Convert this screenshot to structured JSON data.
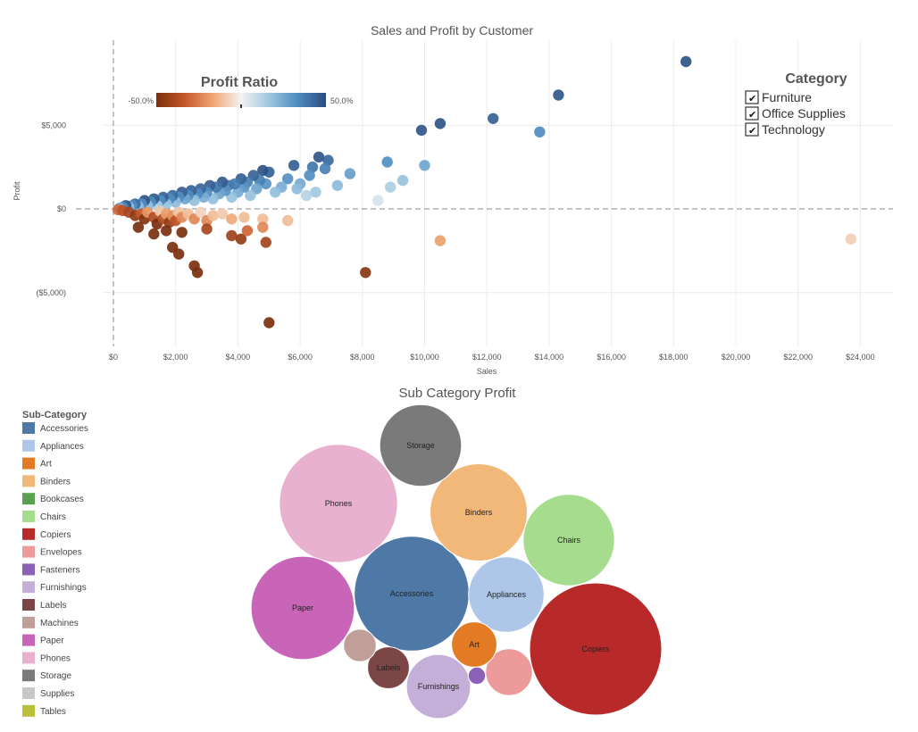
{
  "colors": {
    "gradient": [
      "#7b2f0e",
      "#c4562a",
      "#f0a673",
      "#f3f3f3",
      "#9dc7e0",
      "#4d8bc0",
      "#2b4c7e"
    ]
  },
  "scatter": {
    "title": "Sales and Profit by Customer",
    "xlabel": "Sales",
    "ylabel": "Profit",
    "x_ticks": [
      "$0",
      "$2,000",
      "$4,000",
      "$6,000",
      "$8,000",
      "$10,000",
      "$12,000",
      "$14,000",
      "$16,000",
      "$18,000",
      "$20,000",
      "$22,000",
      "$24,000"
    ],
    "y_ticks": [
      "$5,000",
      "$0",
      "($5,000)"
    ],
    "color_legend": {
      "title": "Profit Ratio",
      "min_label": "-50.0%",
      "max_label": "50.0%"
    },
    "category_legend": {
      "title": "Category",
      "items": [
        {
          "label": "Furniture",
          "checked": true
        },
        {
          "label": "Office Supplies",
          "checked": true
        },
        {
          "label": "Technology",
          "checked": true
        }
      ]
    }
  },
  "bubbles": {
    "title": "Sub Category Profit",
    "legend_title": "Sub-Category"
  },
  "chart_data": [
    {
      "type": "scatter",
      "title": "Sales and Profit by Customer",
      "xlabel": "Sales",
      "ylabel": "Profit",
      "xlim": [
        0,
        25000
      ],
      "ylim": [
        -7000,
        9500
      ],
      "color_encoding": "Profit Ratio",
      "color_range": [
        -0.5,
        0.5
      ],
      "grid": true,
      "points": [
        {
          "x": 18400,
          "y": 8800,
          "r": 0.48
        },
        {
          "x": 14300,
          "y": 6800,
          "r": 0.47
        },
        {
          "x": 12200,
          "y": 5400,
          "r": 0.44
        },
        {
          "x": 10500,
          "y": 5100,
          "r": 0.48
        },
        {
          "x": 9900,
          "y": 4700,
          "r": 0.47
        },
        {
          "x": 13700,
          "y": 4600,
          "r": 0.33
        },
        {
          "x": 23700,
          "y": -1800,
          "r": -0.08
        },
        {
          "x": 10500,
          "y": -1900,
          "r": -0.18
        },
        {
          "x": 8100,
          "y": -3800,
          "r": -0.47
        },
        {
          "x": 5000,
          "y": -6800,
          "r": -0.5
        },
        {
          "x": 8800,
          "y": 2800,
          "r": 0.32
        },
        {
          "x": 10000,
          "y": 2600,
          "r": 0.26
        },
        {
          "x": 9300,
          "y": 1700,
          "r": 0.18
        },
        {
          "x": 8900,
          "y": 1300,
          "r": 0.14
        },
        {
          "x": 8500,
          "y": 500,
          "r": 0.06
        },
        {
          "x": 7600,
          "y": 2100,
          "r": 0.28
        },
        {
          "x": 7200,
          "y": 1400,
          "r": 0.2
        },
        {
          "x": 6900,
          "y": 2900,
          "r": 0.42
        },
        {
          "x": 6800,
          "y": 2400,
          "r": 0.36
        },
        {
          "x": 6600,
          "y": 3100,
          "r": 0.47
        },
        {
          "x": 6400,
          "y": 2500,
          "r": 0.39
        },
        {
          "x": 6300,
          "y": 2000,
          "r": 0.32
        },
        {
          "x": 6500,
          "y": 1000,
          "r": 0.16
        },
        {
          "x": 6200,
          "y": 800,
          "r": 0.12
        },
        {
          "x": 6000,
          "y": 1500,
          "r": 0.25
        },
        {
          "x": 5900,
          "y": 1200,
          "r": 0.2
        },
        {
          "x": 5800,
          "y": 2600,
          "r": 0.45
        },
        {
          "x": 5600,
          "y": 1800,
          "r": 0.32
        },
        {
          "x": 5400,
          "y": 1300,
          "r": 0.24
        },
        {
          "x": 5200,
          "y": 1000,
          "r": 0.19
        },
        {
          "x": 5000,
          "y": 2200,
          "r": 0.44
        },
        {
          "x": 4900,
          "y": 1500,
          "r": 0.31
        },
        {
          "x": 4800,
          "y": 2300,
          "r": 0.48
        },
        {
          "x": 4700,
          "y": 1700,
          "r": 0.36
        },
        {
          "x": 4600,
          "y": 1200,
          "r": 0.26
        },
        {
          "x": 4500,
          "y": 2000,
          "r": 0.44
        },
        {
          "x": 4400,
          "y": 800,
          "r": 0.18
        },
        {
          "x": 4300,
          "y": 1600,
          "r": 0.37
        },
        {
          "x": 4200,
          "y": 1300,
          "r": 0.31
        },
        {
          "x": 4100,
          "y": 1800,
          "r": 0.44
        },
        {
          "x": 4000,
          "y": 1000,
          "r": 0.25
        },
        {
          "x": 3900,
          "y": 1500,
          "r": 0.38
        },
        {
          "x": 3800,
          "y": 700,
          "r": 0.18
        },
        {
          "x": 3700,
          "y": 1400,
          "r": 0.38
        },
        {
          "x": 3600,
          "y": 1100,
          "r": 0.31
        },
        {
          "x": 3500,
          "y": 1600,
          "r": 0.46
        },
        {
          "x": 3400,
          "y": 900,
          "r": 0.26
        },
        {
          "x": 3300,
          "y": 1300,
          "r": 0.39
        },
        {
          "x": 3200,
          "y": 600,
          "r": 0.19
        },
        {
          "x": 3100,
          "y": 1400,
          "r": 0.45
        },
        {
          "x": 3000,
          "y": 1000,
          "r": 0.33
        },
        {
          "x": 2900,
          "y": 700,
          "r": 0.24
        },
        {
          "x": 2800,
          "y": 1200,
          "r": 0.43
        },
        {
          "x": 2700,
          "y": 900,
          "r": 0.33
        },
        {
          "x": 2600,
          "y": 500,
          "r": 0.19
        },
        {
          "x": 2500,
          "y": 1100,
          "r": 0.44
        },
        {
          "x": 2400,
          "y": 800,
          "r": 0.33
        },
        {
          "x": 2300,
          "y": 600,
          "r": 0.26
        },
        {
          "x": 2200,
          "y": 1000,
          "r": 0.45
        },
        {
          "x": 2100,
          "y": 700,
          "r": 0.33
        },
        {
          "x": 2000,
          "y": 400,
          "r": 0.2
        },
        {
          "x": 1900,
          "y": 800,
          "r": 0.42
        },
        {
          "x": 1800,
          "y": 600,
          "r": 0.33
        },
        {
          "x": 1700,
          "y": 300,
          "r": 0.18
        },
        {
          "x": 1600,
          "y": 700,
          "r": 0.44
        },
        {
          "x": 1500,
          "y": 500,
          "r": 0.33
        },
        {
          "x": 1400,
          "y": 200,
          "r": 0.14
        },
        {
          "x": 1300,
          "y": 600,
          "r": 0.46
        },
        {
          "x": 1200,
          "y": 400,
          "r": 0.33
        },
        {
          "x": 1100,
          "y": 200,
          "r": 0.18
        },
        {
          "x": 1000,
          "y": 500,
          "r": 0.48
        },
        {
          "x": 900,
          "y": 300,
          "r": 0.33
        },
        {
          "x": 800,
          "y": 150,
          "r": 0.19
        },
        {
          "x": 700,
          "y": 300,
          "r": 0.42
        },
        {
          "x": 600,
          "y": 200,
          "r": 0.33
        },
        {
          "x": 500,
          "y": 100,
          "r": 0.2
        },
        {
          "x": 400,
          "y": 200,
          "r": 0.48
        },
        {
          "x": 300,
          "y": 100,
          "r": 0.33
        },
        {
          "x": 200,
          "y": 50,
          "r": 0.25
        },
        {
          "x": 150,
          "y": -50,
          "r": -0.3
        },
        {
          "x": 300,
          "y": -100,
          "r": -0.35
        },
        {
          "x": 500,
          "y": -200,
          "r": -0.4
        },
        {
          "x": 700,
          "y": -400,
          "r": -0.45
        },
        {
          "x": 900,
          "y": -300,
          "r": -0.33
        },
        {
          "x": 1000,
          "y": -600,
          "r": -0.48
        },
        {
          "x": 1100,
          "y": -200,
          "r": -0.2
        },
        {
          "x": 1300,
          "y": -500,
          "r": -0.38
        },
        {
          "x": 1400,
          "y": -900,
          "r": -0.5
        },
        {
          "x": 1500,
          "y": -150,
          "r": -0.1
        },
        {
          "x": 1600,
          "y": -600,
          "r": -0.37
        },
        {
          "x": 1700,
          "y": -300,
          "r": -0.18
        },
        {
          "x": 1800,
          "y": -800,
          "r": -0.44
        },
        {
          "x": 1900,
          "y": -400,
          "r": -0.21
        },
        {
          "x": 2000,
          "y": -700,
          "r": -0.35
        },
        {
          "x": 2100,
          "y": -200,
          "r": -0.1
        },
        {
          "x": 2200,
          "y": -500,
          "r": -0.23
        },
        {
          "x": 2400,
          "y": -300,
          "r": -0.12
        },
        {
          "x": 2600,
          "y": -600,
          "r": -0.23
        },
        {
          "x": 2800,
          "y": -200,
          "r": -0.07
        },
        {
          "x": 3000,
          "y": -700,
          "r": -0.23
        },
        {
          "x": 3200,
          "y": -400,
          "r": -0.12
        },
        {
          "x": 3500,
          "y": -300,
          "r": -0.09
        },
        {
          "x": 3800,
          "y": -600,
          "r": -0.16
        },
        {
          "x": 4200,
          "y": -500,
          "r": -0.12
        },
        {
          "x": 4800,
          "y": -600,
          "r": -0.12
        },
        {
          "x": 5600,
          "y": -700,
          "r": -0.12
        },
        {
          "x": 1900,
          "y": -2300,
          "r": -0.5
        },
        {
          "x": 2100,
          "y": -2700,
          "r": -0.5
        },
        {
          "x": 2600,
          "y": -3400,
          "r": -0.5
        },
        {
          "x": 2700,
          "y": -3800,
          "r": -0.5
        },
        {
          "x": 2200,
          "y": -1400,
          "r": -0.5
        },
        {
          "x": 3000,
          "y": -1200,
          "r": -0.4
        },
        {
          "x": 3800,
          "y": -1600,
          "r": -0.42
        },
        {
          "x": 4100,
          "y": -1800,
          "r": -0.44
        },
        {
          "x": 4900,
          "y": -2000,
          "r": -0.41
        },
        {
          "x": 4800,
          "y": -1100,
          "r": -0.23
        },
        {
          "x": 4300,
          "y": -1300,
          "r": -0.3
        },
        {
          "x": 1300,
          "y": -1500,
          "r": -0.5
        },
        {
          "x": 800,
          "y": -1100,
          "r": -0.5
        },
        {
          "x": 1700,
          "y": -1300,
          "r": -0.5
        }
      ]
    },
    {
      "type": "bubble",
      "title": "Sub Category Profit",
      "legend": [
        {
          "name": "Accessories",
          "color": "#4e79a7"
        },
        {
          "name": "Appliances",
          "color": "#aec7e8"
        },
        {
          "name": "Art",
          "color": "#e37b24"
        },
        {
          "name": "Binders",
          "color": "#f2b879"
        },
        {
          "name": "Bookcases",
          "color": "#59a14f"
        },
        {
          "name": "Chairs",
          "color": "#a6dc8e"
        },
        {
          "name": "Copiers",
          "color": "#b8292a"
        },
        {
          "name": "Envelopes",
          "color": "#ec9a9a"
        },
        {
          "name": "Fasteners",
          "color": "#8c61b8"
        },
        {
          "name": "Furnishings",
          "color": "#c4afd8"
        },
        {
          "name": "Labels",
          "color": "#7c4646"
        },
        {
          "name": "Machines",
          "color": "#c09f9a"
        },
        {
          "name": "Paper",
          "color": "#c965b8"
        },
        {
          "name": "Phones",
          "color": "#e7b1cf"
        },
        {
          "name": "Storage",
          "color": "#7a7a7a"
        },
        {
          "name": "Supplies",
          "color": "#c7c7c7"
        },
        {
          "name": "Tables",
          "color": "#b8bf3a"
        }
      ],
      "bubbles": [
        {
          "name": "Copiers",
          "label": "Copiers",
          "value": 55618
        },
        {
          "name": "Phones",
          "label": "Phones",
          "value": 44516
        },
        {
          "name": "Accessories",
          "label": "Accessories",
          "value": 41937
        },
        {
          "name": "Paper",
          "label": "Paper",
          "value": 34054
        },
        {
          "name": "Binders",
          "label": "Binders",
          "value": 30222
        },
        {
          "name": "Chairs",
          "label": "Chairs",
          "value": 26590
        },
        {
          "name": "Storage",
          "label": "Storage",
          "value": 21279
        },
        {
          "name": "Appliances",
          "label": "Appliances",
          "value": 18138
        },
        {
          "name": "Furnishings",
          "label": "Furnishings",
          "value": 13059
        },
        {
          "name": "Envelopes",
          "label": "",
          "value": 6964
        },
        {
          "name": "Art",
          "label": "Art",
          "value": 6528
        },
        {
          "name": "Labels",
          "label": "Labels",
          "value": 5546
        },
        {
          "name": "Machines",
          "label": "",
          "value": 3385
        },
        {
          "name": "Fasteners",
          "label": "",
          "value": 950
        }
      ]
    }
  ]
}
